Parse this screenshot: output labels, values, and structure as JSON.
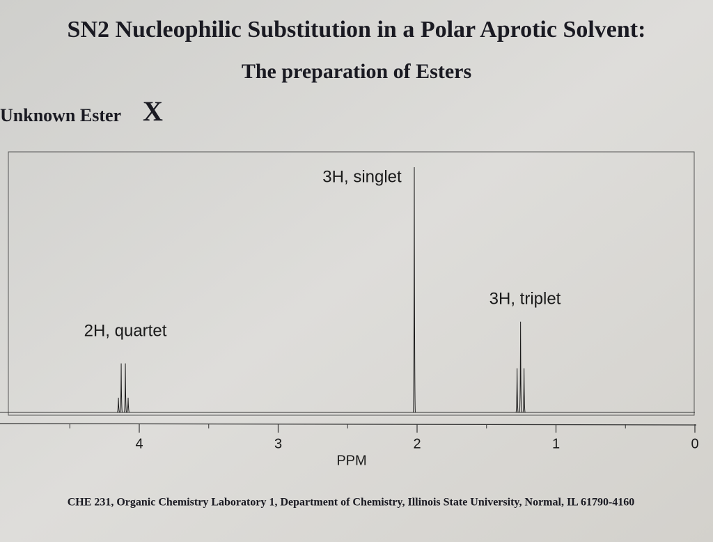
{
  "header": {
    "title": "SN2 Nucleophilic Substitution in a Polar Aprotic Solvent:",
    "subtitle": "The preparation of Esters",
    "label": "Unknown Ester",
    "label_symbol": "X"
  },
  "chart_data": {
    "type": "spectrum",
    "x_label": "PPM",
    "xlim": [
      5,
      0
    ],
    "xticks": [
      4,
      3,
      2,
      1,
      0
    ],
    "minor_xticks": [
      4.5,
      3.5,
      2.5,
      1.5,
      0.5
    ],
    "ylim": [
      0,
      100
    ],
    "color": "#1a1a1a",
    "series": [
      {
        "name": "2H, quartet",
        "x": [
          4.15,
          4.13,
          4.1,
          4.08
        ],
        "values": [
          6,
          20,
          20,
          6
        ]
      },
      {
        "name": "3H, singlet",
        "x": [
          2.02
        ],
        "values": [
          100
        ]
      },
      {
        "name": "3H, triplet",
        "x": [
          1.28,
          1.255,
          1.23
        ],
        "values": [
          18,
          37,
          18
        ]
      }
    ]
  },
  "footer": "CHE 231, Organic Chemistry Laboratory 1, Department of Chemistry, Illinois State University, Normal, IL 61790-4160"
}
